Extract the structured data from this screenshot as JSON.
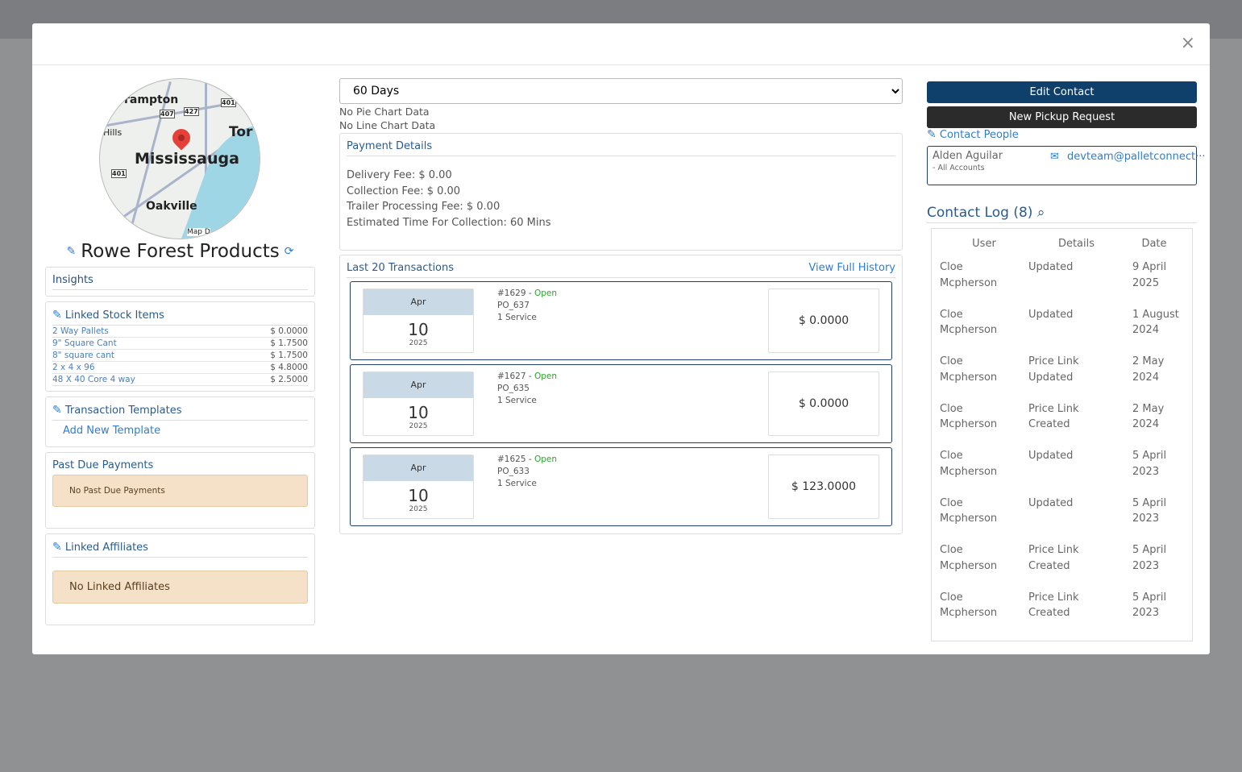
{
  "modal": {
    "close": "×"
  },
  "map": {
    "labels": [
      "rampton",
      "Tor",
      "Hills",
      "Mississauga",
      "Oakville",
      "Map D",
      "407",
      "427",
      "401",
      "401"
    ]
  },
  "company": {
    "name": "Rowe Forest Products"
  },
  "insights": {
    "title": "Insights"
  },
  "stock": {
    "title": "Linked Stock Items",
    "items": [
      {
        "name": "2 Way Pallets",
        "price": "$ 0.0000"
      },
      {
        "name": "9\" Square Cant",
        "price": "$ 1.7500"
      },
      {
        "name": "8\" square cant",
        "price": "$ 1.7500"
      },
      {
        "name": "2 x 4 x 96",
        "price": "$ 4.8000"
      },
      {
        "name": "48 X 40 Core 4 way",
        "price": "$ 2.5000"
      }
    ]
  },
  "templates": {
    "title": "Transaction Templates",
    "add": "Add New Template"
  },
  "pastdue": {
    "title": "Past Due Payments",
    "empty": "No Past Due Payments"
  },
  "affiliates": {
    "title": "Linked Affiliates",
    "empty": "No Linked Affiliates"
  },
  "range": {
    "selected": "60 Days"
  },
  "charts": {
    "pie": "No Pie Chart Data",
    "line": "No Line Chart Data"
  },
  "payment": {
    "title": "Payment Details",
    "fees": [
      "Delivery Fee: $ 0.00",
      "Collection Fee: $ 0.00",
      "Trailer Processing Fee: $ 0.00",
      "Estimated Time For Collection: 60 Mins"
    ]
  },
  "transactions": {
    "title": "Last 20 Transactions",
    "history": "View Full History",
    "items": [
      {
        "month": "Apr",
        "day": "10",
        "year": "2025",
        "id": "#1629 - ",
        "status": "Open",
        "po": "PO_637",
        "service": "1 Service",
        "amount": "$ 0.0000"
      },
      {
        "month": "Apr",
        "day": "10",
        "year": "2025",
        "id": "#1627 - ",
        "status": "Open",
        "po": "PO_635",
        "service": "1 Service",
        "amount": "$ 0.0000"
      },
      {
        "month": "Apr",
        "day": "10",
        "year": "2025",
        "id": "#1625 - ",
        "status": "Open",
        "po": "PO_633",
        "service": "1 Service",
        "amount": "$ 123.0000"
      }
    ]
  },
  "actions": {
    "edit": "Edit Contact",
    "pickup": "New Pickup Request",
    "people": "Contact People"
  },
  "contact": {
    "name": "Alden Aguilar",
    "scope": "- All Accounts",
    "email": "devteam@palletconnect···"
  },
  "log": {
    "title": "Contact Log (8)",
    "headers": [
      "User",
      "Details",
      "Date"
    ],
    "rows": [
      {
        "user": "Cloe Mcpherson",
        "details": "Updated",
        "date": "9 April 2025"
      },
      {
        "user": "Cloe Mcpherson",
        "details": "Updated",
        "date": "1 August 2024"
      },
      {
        "user": "Cloe Mcpherson",
        "details": "Price Link Updated",
        "date": "2 May 2024"
      },
      {
        "user": "Cloe Mcpherson",
        "details": "Price Link Created",
        "date": "2 May 2024"
      },
      {
        "user": "Cloe Mcpherson",
        "details": "Updated",
        "date": "5 April 2023"
      },
      {
        "user": "Cloe Mcpherson",
        "details": "Updated",
        "date": "5 April 2023"
      },
      {
        "user": "Cloe Mcpherson",
        "details": "Price Link Created",
        "date": "5 April 2023"
      },
      {
        "user": "Cloe Mcpherson",
        "details": "Price Link Created",
        "date": "5 April 2023"
      }
    ]
  },
  "colors": {
    "primary": "#0f3f6b",
    "dark": "#2b2b2b",
    "link": "#2f7dd1",
    "open": "#2aa52a"
  }
}
